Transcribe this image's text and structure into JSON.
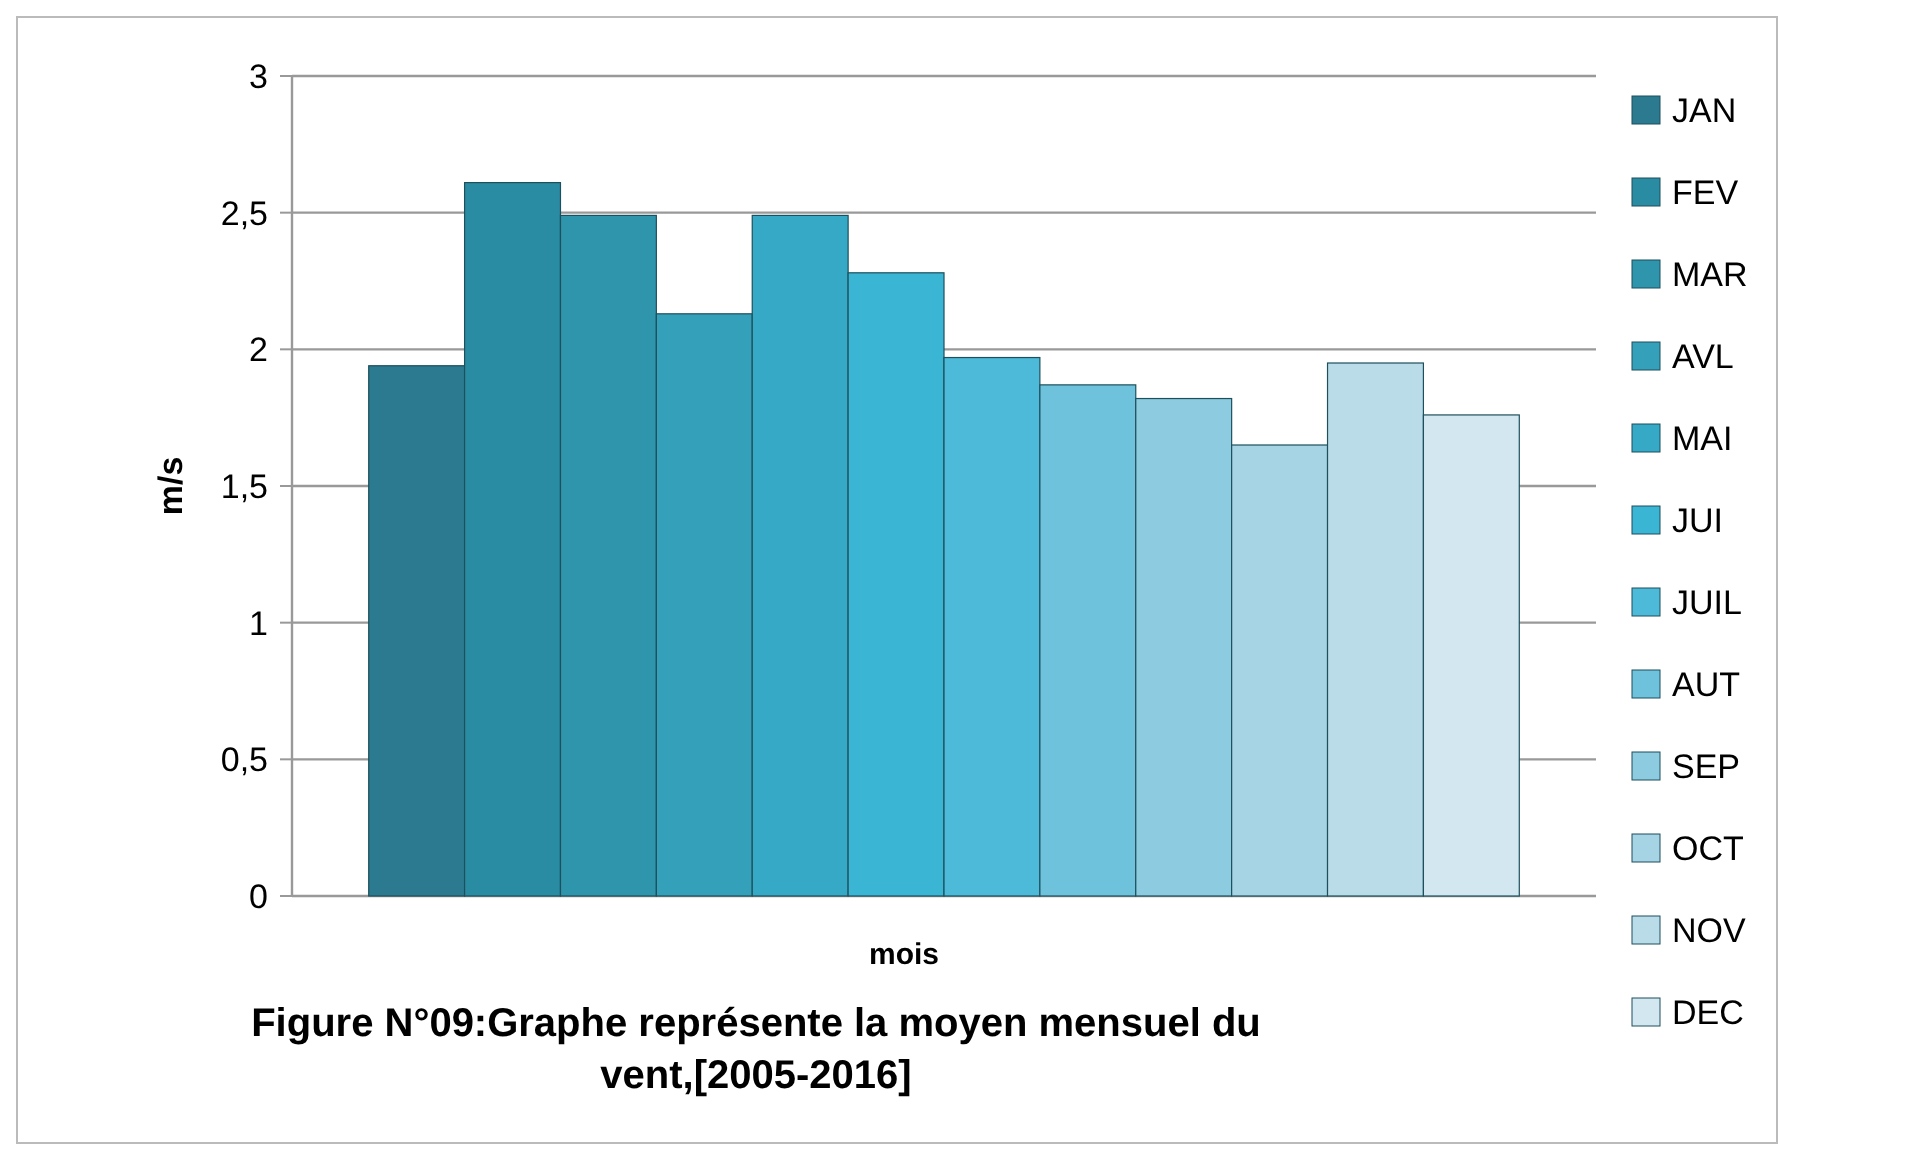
{
  "chart_data": {
    "type": "bar",
    "title": "Figure N°09:Graphe représente la  moyen mensuel du vent,[2005-2016]",
    "xlabel": "mois",
    "ylabel": "m/s",
    "categories": [
      null
    ],
    "series": [
      {
        "name": "JAN",
        "color": "#2b7a8f",
        "values": [
          1.94
        ]
      },
      {
        "name": "FEV",
        "color": "#2a8ca3",
        "values": [
          2.61
        ]
      },
      {
        "name": "MAR",
        "color": "#2e95ad",
        "values": [
          2.49
        ]
      },
      {
        "name": "AVL",
        "color": "#34a0ba",
        "values": [
          2.13
        ]
      },
      {
        "name": "MAI",
        "color": "#35a9c6",
        "values": [
          2.49
        ]
      },
      {
        "name": "JUI",
        "color": "#3ab5d4",
        "values": [
          2.28
        ]
      },
      {
        "name": "JUIL",
        "color": "#4cbad8",
        "values": [
          1.97
        ]
      },
      {
        "name": "AUT",
        "color": "#6ec2dc",
        "values": [
          1.87
        ]
      },
      {
        "name": "SEP",
        "color": "#8ccbe0",
        "values": [
          1.82
        ]
      },
      {
        "name": "OCT",
        "color": "#a6d4e4",
        "values": [
          1.65
        ]
      },
      {
        "name": "NOV",
        "color": "#badce9",
        "values": [
          1.95
        ]
      },
      {
        "name": "DEC",
        "color": "#d3e7f0",
        "values": [
          1.76
        ]
      }
    ],
    "ylim": [
      0,
      3
    ],
    "yticks": [
      0,
      {
        "value": 0.5,
        "label": "0,5"
      },
      1,
      {
        "value": 1.5,
        "label": "1,5"
      },
      2,
      {
        "value": 2.5,
        "label": "2,5"
      },
      3
    ],
    "grid": "y",
    "legend": "right"
  }
}
